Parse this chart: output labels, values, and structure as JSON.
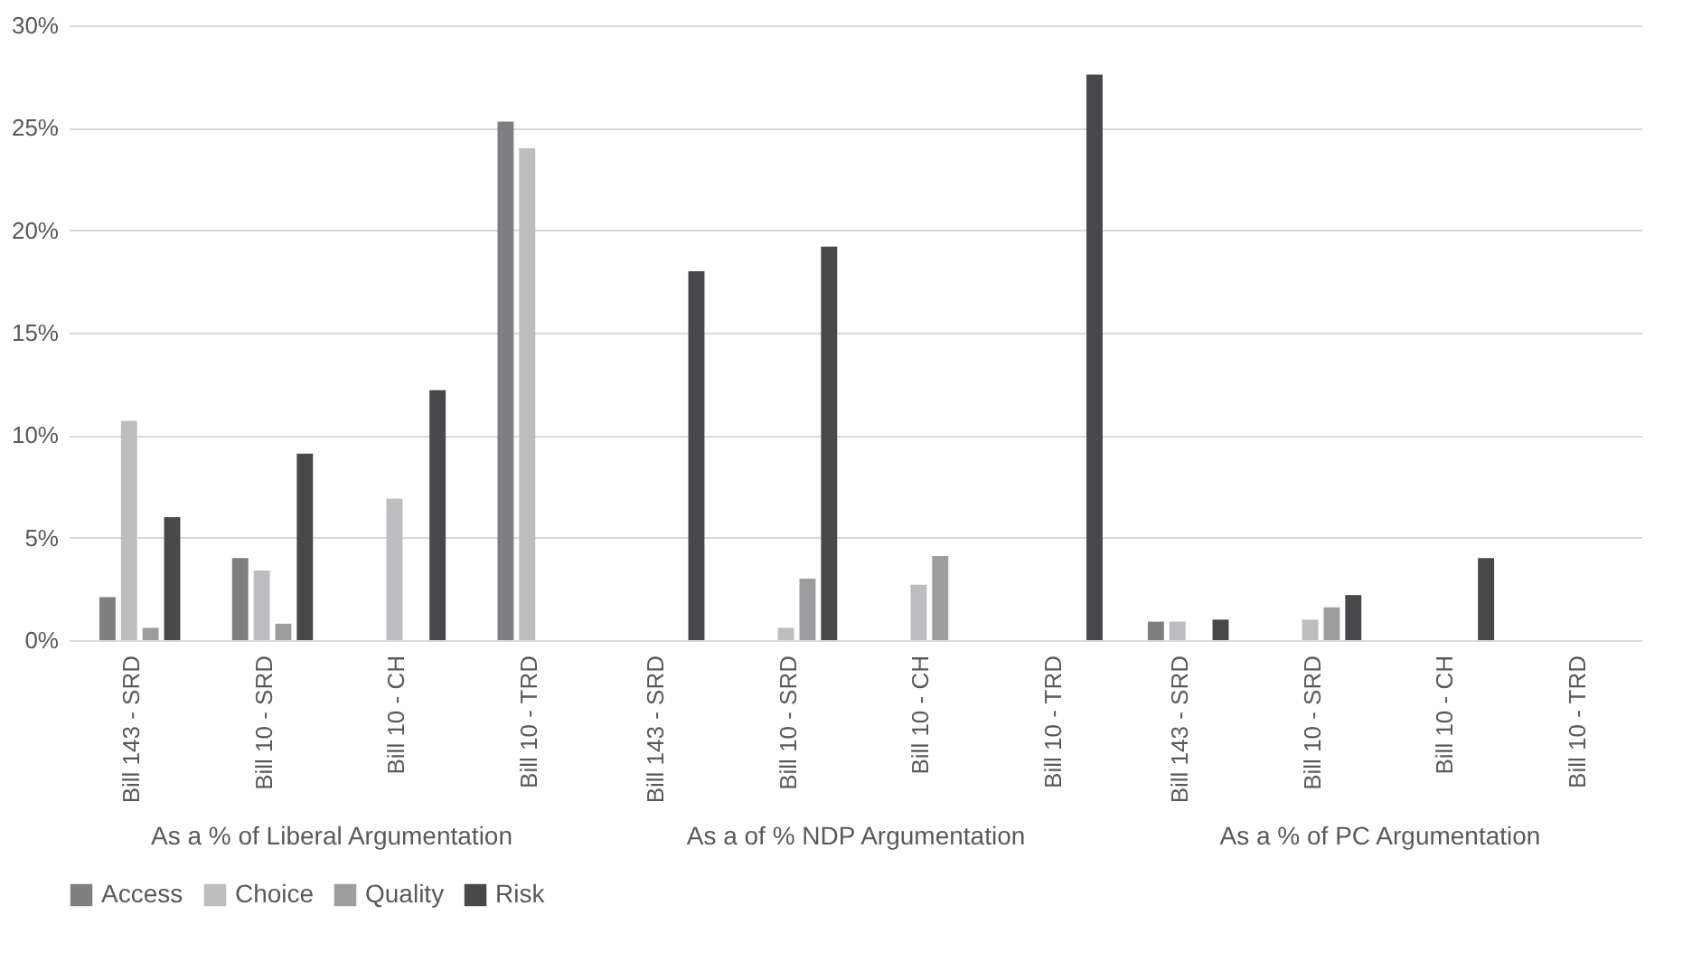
{
  "chart_data": [
    {
      "type": "bar",
      "xlabel": "As a % of Liberal Argumentation",
      "categories": [
        "Bill 143 - SRD",
        "Bill 10 - SRD",
        "Bill 10 - CH",
        "Bill 10 - TRD"
      ],
      "series": [
        {
          "name": "Access",
          "color": "#7f7f82",
          "values": [
            2.1,
            4.0,
            0,
            25.3
          ]
        },
        {
          "name": "Choice",
          "color": "#bdbdc0",
          "values": [
            10.7,
            3.4,
            6.9,
            24.0
          ]
        },
        {
          "name": "Quality",
          "color": "#9d9da0",
          "values": [
            0.6,
            0.8,
            0,
            0
          ]
        },
        {
          "name": "Risk",
          "color": "#48484a",
          "values": [
            6.0,
            9.1,
            12.2,
            0
          ]
        }
      ],
      "ylim": [
        0,
        30
      ],
      "yticks": [
        {
          "value": 0,
          "label": "0%"
        },
        {
          "value": 5,
          "label": "5%"
        },
        {
          "value": 10,
          "label": "10%"
        },
        {
          "value": 15,
          "label": "15%"
        },
        {
          "value": 20,
          "label": "20%"
        },
        {
          "value": 25,
          "label": "25%"
        },
        {
          "value": 30,
          "label": "30%"
        }
      ],
      "grid": "y",
      "legend": "bottom"
    },
    {
      "type": "bar",
      "xlabel": "As a of % NDP Argumentation",
      "categories": [
        "Bill 143 - SRD",
        "Bill 10 - SRD",
        "Bill 10 - CH",
        "Bill 10 - TRD"
      ],
      "series": [
        {
          "name": "Access",
          "color": "#7f7f82",
          "values": [
            0,
            0,
            0,
            0
          ]
        },
        {
          "name": "Choice",
          "color": "#bdbdc0",
          "values": [
            0,
            0.6,
            2.7,
            0
          ]
        },
        {
          "name": "Quality",
          "color": "#9d9da0",
          "values": [
            0,
            3.0,
            4.1,
            0
          ]
        },
        {
          "name": "Risk",
          "color": "#48484a",
          "values": [
            18.0,
            19.2,
            0,
            27.6
          ]
        }
      ],
      "ylim": [
        0,
        30
      ],
      "yticks": [
        0,
        5,
        10,
        15,
        20,
        25,
        30
      ],
      "grid": "y",
      "tick_labels": "x"
    },
    {
      "type": "bar",
      "xlabel": "As a % of PC Argumentation",
      "categories": [
        "Bill 143 - SRD",
        "Bill 10 - SRD",
        "Bill 10 - CH",
        "Bill 10 - TRD"
      ],
      "series": [
        {
          "name": "Access",
          "color": "#7f7f82",
          "values": [
            0.9,
            0,
            0,
            0
          ]
        },
        {
          "name": "Choice",
          "color": "#bdbdc0",
          "values": [
            0.9,
            1.0,
            0,
            0
          ]
        },
        {
          "name": "Quality",
          "color": "#9d9da0",
          "values": [
            0,
            1.6,
            0,
            0
          ]
        },
        {
          "name": "Risk",
          "color": "#48484a",
          "values": [
            1.0,
            2.2,
            4.0,
            0
          ]
        }
      ],
      "ylim": [
        0,
        30
      ],
      "yticks": [
        0,
        5,
        10,
        15,
        20,
        25,
        30
      ],
      "grid": "y",
      "tick_labels": "x"
    }
  ]
}
